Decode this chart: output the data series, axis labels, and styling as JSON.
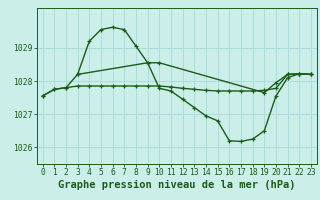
{
  "xlabel": "Graphe pression niveau de la mer (hPa)",
  "bg_color": "#cceee8",
  "grid_color": "#aadddd",
  "line_color": "#1a5c1a",
  "ylim": [
    1025.5,
    1030.2
  ],
  "xlim": [
    -0.5,
    23.5
  ],
  "yticks": [
    1026,
    1027,
    1028,
    1029
  ],
  "xticks": [
    0,
    1,
    2,
    3,
    4,
    5,
    6,
    7,
    8,
    9,
    10,
    11,
    12,
    13,
    14,
    15,
    16,
    17,
    18,
    19,
    20,
    21,
    22,
    23
  ],
  "line1_x": [
    0,
    1,
    2,
    3,
    4,
    5,
    6,
    7,
    8,
    9,
    10,
    11,
    12,
    13,
    14,
    15,
    16,
    17,
    18,
    19,
    20,
    21,
    22,
    23
  ],
  "line1_y": [
    1027.55,
    1027.75,
    1027.8,
    1027.85,
    1027.85,
    1027.85,
    1027.85,
    1027.85,
    1027.85,
    1027.85,
    1027.85,
    1027.82,
    1027.78,
    1027.75,
    1027.72,
    1027.7,
    1027.7,
    1027.7,
    1027.7,
    1027.72,
    1027.78,
    1028.2,
    1028.22,
    1028.2
  ],
  "line2_x": [
    0,
    1,
    2,
    3,
    4,
    5,
    6,
    7,
    8,
    9,
    10,
    11,
    12,
    13,
    14,
    15,
    16,
    17,
    18,
    19,
    20,
    21,
    22,
    23
  ],
  "line2_y": [
    1027.55,
    1027.75,
    1027.8,
    1028.2,
    1029.2,
    1029.55,
    1029.62,
    1029.55,
    1029.05,
    1028.55,
    1027.78,
    1027.7,
    1027.45,
    1027.2,
    1026.95,
    1026.8,
    1026.2,
    1026.18,
    1026.25,
    1026.5,
    1027.55,
    1028.1,
    1028.22,
    1028.2
  ],
  "line3_x": [
    3,
    9,
    10,
    19,
    20,
    21,
    22,
    23
  ],
  "line3_y": [
    1028.2,
    1028.55,
    1028.55,
    1027.65,
    1027.95,
    1028.2,
    1028.22,
    1028.2
  ],
  "xlabel_fontsize": 7.5,
  "tick_fontsize": 5.8
}
